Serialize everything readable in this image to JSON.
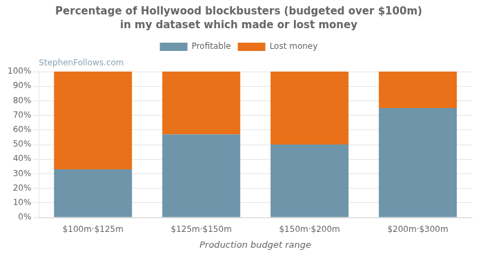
{
  "chart_data": {
    "type": "bar",
    "title": "Percentage of Hollywood blockbusters (budgeted over $100m)",
    "subtitle": "in my dataset which made or lost money",
    "x_label": "Production budget range",
    "categories": [
      "$100m·$125m",
      "$125m·$150m",
      "$150m·$200m",
      "$200m·$300m"
    ],
    "series": [
      {
        "name": "Profitable",
        "color": "#6e95aa",
        "values": [
          33,
          57,
          50,
          75
        ]
      },
      {
        "name": "Lost money",
        "color": "#e8711a",
        "values": [
          67,
          43,
          50,
          25
        ]
      }
    ],
    "stacked": true,
    "ylim": [
      0,
      100
    ],
    "yticks": [
      {
        "value": 0,
        "label": "0%"
      },
      {
        "value": 10,
        "label": "10%"
      },
      {
        "value": 20,
        "label": "20%"
      },
      {
        "value": 30,
        "label": "30%"
      },
      {
        "value": 40,
        "label": "40%"
      },
      {
        "value": 50,
        "label": "50%"
      },
      {
        "value": 60,
        "label": "60%"
      },
      {
        "value": 70,
        "label": "70%"
      },
      {
        "value": 80,
        "label": "80%"
      },
      {
        "value": 90,
        "label": "90%"
      },
      {
        "value": 100,
        "label": "100%"
      }
    ],
    "grid": true,
    "legend": "top",
    "annotations": [
      "StephenFollows.com"
    ]
  }
}
